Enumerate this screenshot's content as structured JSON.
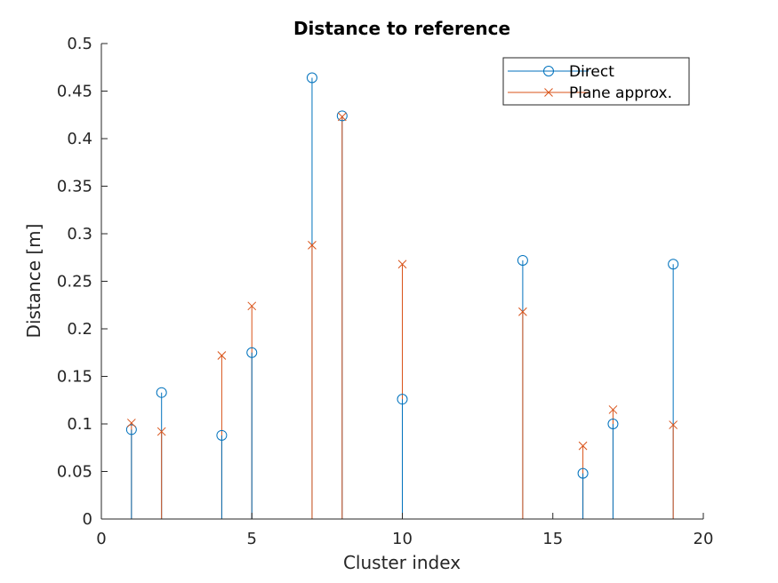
{
  "chart_data": {
    "type": "stem",
    "title": "Distance to reference",
    "xlabel": "Cluster index",
    "ylabel": "Distance [m]",
    "xlim": [
      0,
      20
    ],
    "ylim": [
      0,
      0.5
    ],
    "xticks": [
      "0",
      "5",
      "10",
      "15",
      "20"
    ],
    "yticks": [
      "0",
      "0.05",
      "0.1",
      "0.15",
      "0.2",
      "0.25",
      "0.3",
      "0.35",
      "0.4",
      "0.45",
      "0.5"
    ],
    "grid": false,
    "legend_position": "top-right",
    "x": [
      1,
      2,
      4,
      5,
      7,
      8,
      10,
      14,
      16,
      17,
      19
    ],
    "series": [
      {
        "name": "Direct",
        "marker": "circle",
        "color": "#0072BD",
        "values": [
          0.094,
          0.133,
          0.088,
          0.175,
          0.464,
          0.424,
          0.126,
          0.272,
          0.048,
          0.1,
          0.268
        ]
      },
      {
        "name": "Plane approx.",
        "marker": "x",
        "color": "#D95319",
        "values": [
          0.101,
          0.092,
          0.172,
          0.224,
          0.288,
          0.423,
          0.268,
          0.218,
          0.077,
          0.115,
          0.099
        ]
      }
    ]
  }
}
